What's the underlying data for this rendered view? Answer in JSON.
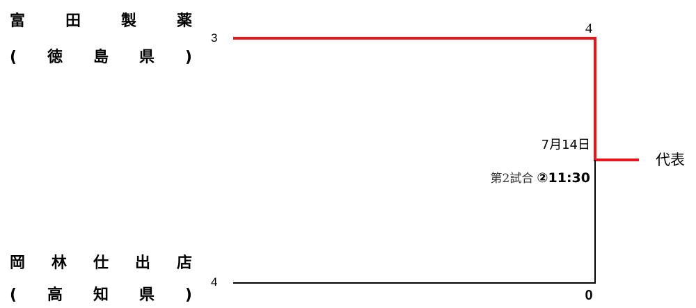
{
  "teams": [
    {
      "name_chars": [
        "富",
        "田",
        "製",
        "薬"
      ],
      "pref_chars": [
        "(",
        "徳",
        "島",
        "県",
        ")"
      ],
      "seed": "3",
      "score": "4",
      "winner": true
    },
    {
      "name_chars": [
        "岡",
        "林",
        "仕",
        "出",
        "店"
      ],
      "pref_chars": [
        "(",
        "高",
        "知",
        "県",
        ")"
      ],
      "seed": "4",
      "score": "0",
      "winner": false
    }
  ],
  "game": {
    "date": "7月14日",
    "label": "第2試合",
    "time": "②11:30"
  },
  "result_label": "代表",
  "colors": {
    "winner_line": "#e8141b",
    "loser_line": "#000000"
  }
}
